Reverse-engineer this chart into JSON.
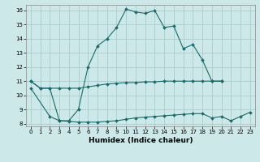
{
  "xlabel": "Humidex (Indice chaleur)",
  "background_color": "#cce8e8",
  "grid_color": "#aacccc",
  "line_color": "#1a6b6b",
  "xlim": [
    -0.5,
    23.5
  ],
  "ylim": [
    7.8,
    16.4
  ],
  "yticks": [
    8,
    9,
    10,
    11,
    12,
    13,
    14,
    15,
    16
  ],
  "xticks": [
    0,
    1,
    2,
    3,
    4,
    5,
    6,
    7,
    8,
    9,
    10,
    11,
    12,
    13,
    14,
    15,
    16,
    17,
    18,
    19,
    20,
    21,
    22,
    23
  ],
  "line1_x": [
    0,
    1,
    2,
    3,
    4,
    5,
    6,
    7,
    8,
    9,
    10,
    11,
    12,
    13,
    14,
    15,
    16,
    17,
    18,
    19,
    20
  ],
  "line1_y": [
    11.0,
    10.5,
    10.5,
    8.2,
    8.2,
    9.0,
    12.0,
    13.5,
    14.0,
    14.8,
    16.1,
    15.9,
    15.8,
    16.0,
    14.8,
    14.9,
    13.3,
    13.6,
    12.5,
    11.0,
    11.0
  ],
  "line2_x": [
    0,
    1,
    2,
    3,
    4,
    5,
    6,
    7,
    8,
    9,
    10,
    11,
    12,
    13,
    14,
    15,
    16,
    17,
    18,
    19,
    20
  ],
  "line2_y": [
    11.0,
    10.5,
    10.5,
    10.5,
    10.5,
    10.5,
    10.6,
    10.7,
    10.8,
    10.85,
    10.9,
    10.9,
    10.95,
    10.95,
    11.0,
    11.0,
    11.0,
    11.0,
    11.0,
    11.0,
    11.0
  ],
  "line3_x": [
    0,
    2,
    3,
    4,
    5,
    6,
    7,
    8,
    9,
    10,
    11,
    12,
    13,
    14,
    15,
    16,
    17,
    18,
    19,
    20,
    21,
    22,
    23
  ],
  "line3_y": [
    10.5,
    8.5,
    8.2,
    8.15,
    8.1,
    8.1,
    8.1,
    8.15,
    8.2,
    8.3,
    8.4,
    8.45,
    8.5,
    8.55,
    8.6,
    8.65,
    8.7,
    8.7,
    8.4,
    8.5,
    8.2,
    8.5,
    8.8
  ]
}
